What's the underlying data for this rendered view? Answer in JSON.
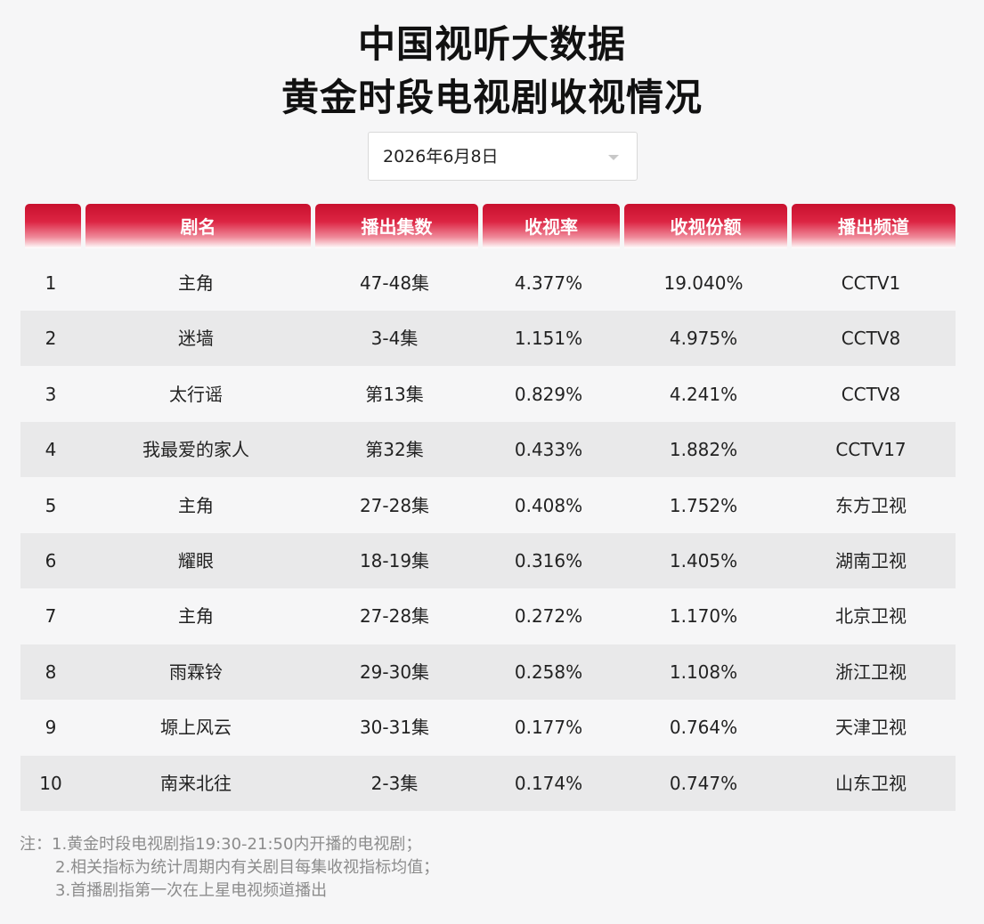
{
  "title": {
    "line1": "中国视听大数据",
    "line2": "黄金时段电视剧收视情况"
  },
  "date_select": {
    "value": "2026年6月8日"
  },
  "table": {
    "headers": [
      "",
      "剧名",
      "播出集数",
      "收视率",
      "收视份额",
      "播出频道"
    ],
    "rows": [
      [
        "1",
        "主角",
        "47-48集",
        "4.377%",
        "19.040%",
        "CCTV1"
      ],
      [
        "2",
        "迷墙",
        "3-4集",
        "1.151%",
        "4.975%",
        "CCTV8"
      ],
      [
        "3",
        "太行谣",
        "第13集",
        "0.829%",
        "4.241%",
        "CCTV8"
      ],
      [
        "4",
        "我最爱的家人",
        "第32集",
        "0.433%",
        "1.882%",
        "CCTV17"
      ],
      [
        "5",
        "主角",
        "27-28集",
        "0.408%",
        "1.752%",
        "东方卫视"
      ],
      [
        "6",
        "耀眼",
        "18-19集",
        "0.316%",
        "1.405%",
        "湖南卫视"
      ],
      [
        "7",
        "主角",
        "27-28集",
        "0.272%",
        "1.170%",
        "北京卫视"
      ],
      [
        "8",
        "雨霖铃",
        "29-30集",
        "0.258%",
        "1.108%",
        "浙江卫视"
      ],
      [
        "9",
        "塬上风云",
        "30-31集",
        "0.177%",
        "0.764%",
        "天津卫视"
      ],
      [
        "10",
        "南来北往",
        "2-3集",
        "0.174%",
        "0.747%",
        "山东卫视"
      ]
    ]
  },
  "notes": {
    "prefix": "注：",
    "items": [
      "1.黄金时段电视剧指19:30-21:50内开播的电视剧；",
      "2.相关指标为统计周期内有关剧目每集收视指标均值；",
      "3.首播剧指第一次在上星电视频道播出"
    ]
  }
}
